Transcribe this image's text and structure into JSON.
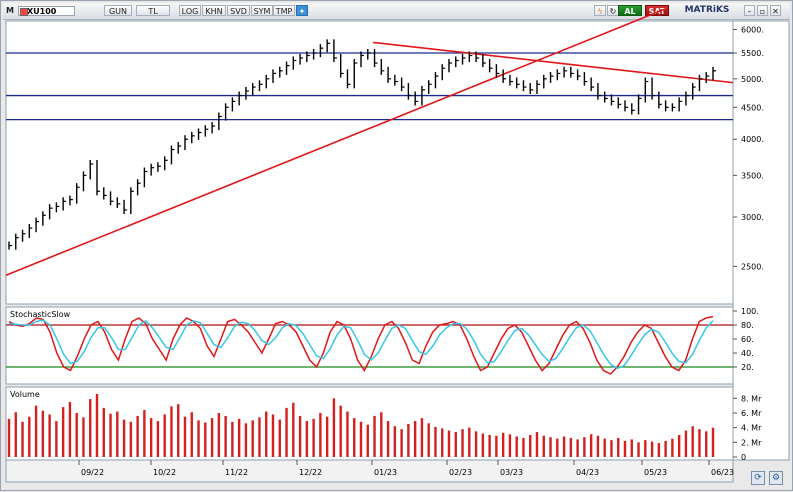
{
  "toolbar": {
    "m_label": "M",
    "symbol": "XU100",
    "period": "GUN",
    "currency": "TL",
    "log": "LOG",
    "khn": "KHN",
    "svd": "SVD",
    "sym": "SYM",
    "tmp": "TMP",
    "buy": "AL",
    "sell": "SAT",
    "brand": "MATRiKS"
  },
  "panels": {
    "stoch_title": "StochasticSlow",
    "volume_title": "Volume"
  },
  "colors": {
    "candle": "#000000",
    "trendline": "#e0161a",
    "hline": "#1a2a8f",
    "stoch_k": "#e0161a",
    "stoch_d": "#35c8e8",
    "overbought": "#b01010",
    "oversold": "#1a8a1a",
    "volume": "#d42020"
  },
  "chart_data": [
    {
      "type": "candlestick",
      "title": "",
      "x_ticks": [
        "09/22",
        "10/22",
        "11/22",
        "12/22",
        "01/23",
        "02/23",
        "03/23",
        "04/23",
        "05/23",
        "06/23"
      ],
      "y_ticks": [
        "2500.",
        "3000.",
        "3500.",
        "4000.",
        "4500.",
        "5000.",
        "5500.",
        "6000."
      ],
      "ylim": [
        2200,
        6100
      ],
      "y_scale": "log",
      "grid": false,
      "close_series": [
        2700,
        2780,
        2820,
        2880,
        2950,
        3020,
        3100,
        3120,
        3180,
        3200,
        3350,
        3500,
        3650,
        3300,
        3250,
        3180,
        3150,
        3080,
        3300,
        3400,
        3550,
        3600,
        3620,
        3700,
        3850,
        3900,
        4000,
        4050,
        4100,
        4150,
        4200,
        4350,
        4500,
        4600,
        4700,
        4780,
        4850,
        4900,
        5000,
        5100,
        5150,
        5250,
        5350,
        5400,
        5450,
        5500,
        5600,
        5700,
        5400,
        5100,
        4900,
        5300,
        5450,
        5500,
        5300,
        5150,
        5000,
        4950,
        4850,
        4700,
        4600,
        4800,
        4900,
        5050,
        5200,
        5300,
        5350,
        5400,
        5450,
        5400,
        5300,
        5200,
        5100,
        5000,
        4950,
        4900,
        4850,
        4800,
        4900,
        5000,
        5050,
        5100,
        5150,
        5100,
        5050,
        4950,
        4850,
        4700,
        4650,
        4600,
        4550,
        4500,
        4450,
        4650,
        4950,
        4700,
        4550,
        4500,
        4500,
        4600,
        4700,
        4850,
        5000,
        5050,
        5150
      ],
      "horizontal_levels": [
        5500,
        4700,
        4300
      ],
      "trendlines": [
        {
          "from": {
            "period": "09/22",
            "value": 2500
          },
          "to": {
            "period": "06/23",
            "value": 6500
          }
        },
        {
          "from": {
            "period": "01/23",
            "value": 5700
          },
          "to": {
            "period": "06/23",
            "value": 4950
          }
        }
      ]
    },
    {
      "type": "line",
      "title": "StochasticSlow",
      "y_ticks": [
        "20.",
        "40.",
        "60.",
        "80.",
        "100."
      ],
      "ylim": [
        0,
        100
      ],
      "levels": [
        80,
        20
      ],
      "series": [
        {
          "values": [
            85,
            80,
            78,
            82,
            90,
            88,
            70,
            40,
            20,
            15,
            35,
            60,
            80,
            85,
            70,
            45,
            30,
            60,
            85,
            90,
            82,
            60,
            45,
            30,
            60,
            80,
            90,
            85,
            75,
            50,
            35,
            60,
            85,
            88,
            80,
            70,
            55,
            40,
            60,
            82,
            85,
            80,
            70,
            50,
            30,
            20,
            40,
            70,
            85,
            80,
            60,
            30,
            15,
            35,
            60,
            80,
            85,
            75,
            55,
            30,
            25,
            50,
            70,
            80,
            82,
            85,
            80,
            60,
            35,
            15,
            20,
            40,
            60,
            75,
            80,
            70,
            50,
            30,
            15,
            25,
            45,
            65,
            80,
            85,
            75,
            55,
            30,
            15,
            10,
            20,
            35,
            55,
            70,
            80,
            75,
            55,
            35,
            20,
            15,
            30,
            60,
            85,
            90,
            92
          ]
        },
        {
          "values": [
            82,
            81,
            80,
            80,
            85,
            87,
            80,
            60,
            38,
            25,
            28,
            42,
            62,
            76,
            76,
            62,
            45,
            45,
            62,
            80,
            86,
            76,
            62,
            48,
            45,
            62,
            80,
            86,
            83,
            68,
            52,
            48,
            62,
            78,
            84,
            82,
            72,
            58,
            52,
            62,
            76,
            82,
            79,
            68,
            52,
            36,
            32,
            46,
            66,
            78,
            76,
            58,
            38,
            30,
            40,
            58,
            75,
            80,
            75,
            58,
            42,
            38,
            50,
            66,
            76,
            82,
            82,
            74,
            58,
            38,
            26,
            28,
            42,
            58,
            72,
            75,
            66,
            52,
            38,
            28,
            32,
            46,
            62,
            76,
            80,
            72,
            55,
            38,
            24,
            18,
            22,
            36,
            52,
            66,
            74,
            70,
            56,
            40,
            28,
            26,
            38,
            58,
            76,
            86
          ]
        }
      ]
    },
    {
      "type": "bar",
      "title": "Volume",
      "y_ticks": [
        "0",
        "2. Mr",
        "4. Mr",
        "6. Mr",
        "8. Mr"
      ],
      "ylim": [
        0,
        9
      ],
      "values": [
        5.2,
        6.1,
        4.8,
        5.5,
        7.0,
        6.3,
        5.8,
        4.9,
        6.8,
        7.5,
        6.0,
        5.4,
        7.9,
        8.6,
        6.7,
        5.9,
        6.2,
        5.1,
        4.8,
        5.6,
        6.4,
        5.3,
        4.9,
        5.8,
        6.9,
        7.2,
        5.5,
        6.1,
        5.0,
        4.7,
        5.3,
        6.0,
        5.6,
        4.8,
        5.2,
        4.6,
        5.0,
        5.4,
        6.2,
        5.8,
        5.1,
        6.7,
        7.4,
        5.6,
        4.9,
        5.2,
        6.0,
        5.5,
        8.0,
        7.0,
        6.2,
        5.3,
        4.8,
        4.4,
        5.6,
        6.1,
        4.9,
        4.2,
        3.8,
        4.5,
        4.9,
        5.3,
        4.6,
        4.1,
        3.9,
        3.6,
        3.4,
        3.8,
        4.0,
        3.5,
        3.2,
        3.0,
        2.9,
        3.3,
        3.1,
        2.8,
        2.6,
        3.0,
        3.4,
        2.9,
        2.7,
        2.5,
        2.8,
        2.6,
        2.4,
        2.7,
        3.1,
        2.9,
        2.5,
        2.3,
        2.6,
        2.2,
        2.4,
        2.0,
        2.3,
        2.1,
        1.9,
        2.2,
        2.5,
        3.0,
        3.6,
        4.2,
        3.8,
        3.5,
        4.0
      ]
    }
  ]
}
